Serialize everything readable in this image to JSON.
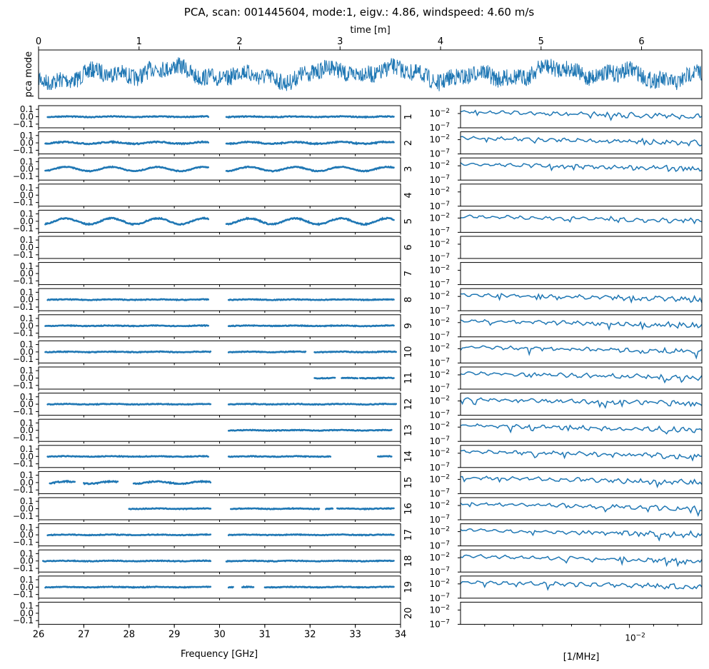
{
  "title": "PCA, scan: 001445604, mode:1, eigv.: 4.86, windspeed: 4.60 m/s",
  "colors": {
    "series": "#1f77b4",
    "axis": "#000000"
  },
  "chart_data": [
    {
      "type": "line",
      "name": "time-series",
      "ylabel": "pca mode",
      "xlabel": "time [m]",
      "xlim": [
        0,
        6.6
      ],
      "xticks": [
        "0",
        "1",
        "2",
        "3",
        "4",
        "5",
        "6"
      ],
      "grid": false
    },
    {
      "type": "scatter",
      "name": "per-feed-spectra",
      "xlabel": "Frequency [GHz]",
      "xlim": [
        26,
        34
      ],
      "xticks": [
        "26",
        "27",
        "28",
        "29",
        "30",
        "31",
        "32",
        "33",
        "34"
      ],
      "yticks": [
        "0.1",
        "0.0",
        "−0.1"
      ],
      "ylim": [
        -0.15,
        0.15
      ],
      "feeds": [
        {
          "feed": "1",
          "segments": [
            [
              26.2,
              29.75
            ],
            [
              30.15,
              33.85
            ]
          ],
          "wiggle": 0.004,
          "noise": 0.006
        },
        {
          "feed": "2",
          "segments": [
            [
              26.15,
              29.75
            ],
            [
              30.15,
              33.85
            ]
          ],
          "wiggle": 0.012,
          "noise": 0.008
        },
        {
          "feed": "3",
          "segments": [
            [
              26.15,
              29.75
            ],
            [
              30.15,
              33.85
            ]
          ],
          "wiggle": 0.028,
          "noise": 0.006
        },
        {
          "feed": "4",
          "segments": [],
          "wiggle": 0,
          "noise": 0
        },
        {
          "feed": "5",
          "segments": [
            [
              26.15,
              29.75
            ],
            [
              30.15,
              33.85
            ]
          ],
          "wiggle": 0.04,
          "noise": 0.008
        },
        {
          "feed": "6",
          "segments": [],
          "wiggle": 0,
          "noise": 0
        },
        {
          "feed": "7",
          "segments": [],
          "wiggle": 0,
          "noise": 0
        },
        {
          "feed": "8",
          "segments": [
            [
              26.2,
              29.75
            ],
            [
              30.2,
              33.85
            ]
          ],
          "wiggle": 0.003,
          "noise": 0.005
        },
        {
          "feed": "9",
          "segments": [
            [
              26.15,
              29.75
            ],
            [
              30.2,
              33.85
            ]
          ],
          "wiggle": 0.003,
          "noise": 0.005
        },
        {
          "feed": "10",
          "segments": [
            [
              26.15,
              29.8
            ],
            [
              30.2,
              31.9
            ],
            [
              32.1,
              33.9
            ]
          ],
          "wiggle": 0.003,
          "noise": 0.005
        },
        {
          "feed": "11",
          "segments": [
            [
              32.1,
              32.55
            ],
            [
              32.7,
              33.05
            ],
            [
              33.1,
              33.85
            ]
          ],
          "wiggle": 0.003,
          "noise": 0.005
        },
        {
          "feed": "12",
          "segments": [
            [
              26.2,
              29.8
            ],
            [
              30.2,
              33.9
            ]
          ],
          "wiggle": 0.003,
          "noise": 0.005
        },
        {
          "feed": "13",
          "segments": [
            [
              30.2,
              33.8
            ]
          ],
          "wiggle": 0.003,
          "noise": 0.005
        },
        {
          "feed": "14",
          "segments": [
            [
              26.2,
              29.75
            ],
            [
              30.2,
              32.45
            ],
            [
              33.5,
              33.8
            ]
          ],
          "wiggle": 0.003,
          "noise": 0.005
        },
        {
          "feed": "15",
          "segments": [
            [
              26.25,
              26.8
            ],
            [
              27.0,
              27.75
            ],
            [
              28.1,
              29.8
            ]
          ],
          "wiggle": 0.015,
          "noise": 0.008
        },
        {
          "feed": "16",
          "segments": [
            [
              28.0,
              29.8
            ],
            [
              30.25,
              32.2
            ],
            [
              32.35,
              32.5
            ],
            [
              32.6,
              33.85
            ]
          ],
          "wiggle": 0.003,
          "noise": 0.005
        },
        {
          "feed": "17",
          "segments": [
            [
              26.2,
              29.8
            ],
            [
              30.2,
              33.85
            ]
          ],
          "wiggle": 0.003,
          "noise": 0.005
        },
        {
          "feed": "18",
          "segments": [
            [
              26.1,
              29.8
            ],
            [
              30.15,
              33.85
            ]
          ],
          "wiggle": 0.003,
          "noise": 0.005
        },
        {
          "feed": "19",
          "segments": [
            [
              26.15,
              29.8
            ],
            [
              30.2,
              30.3
            ],
            [
              30.5,
              30.75
            ],
            [
              31.0,
              33.85
            ]
          ],
          "wiggle": 0.003,
          "noise": 0.005
        },
        {
          "feed": "20",
          "segments": [],
          "wiggle": 0,
          "noise": 0
        }
      ]
    },
    {
      "type": "line",
      "name": "per-feed-power-spectra",
      "xlabel": "[1/MHz]",
      "xscale": "log",
      "yscale": "log",
      "xtick_label": "10^-2",
      "yticks": [
        "10^-2",
        "10^-7"
      ],
      "active_feeds": [
        "1",
        "2",
        "3",
        "5",
        "8",
        "9",
        "10",
        "11",
        "12",
        "13",
        "14",
        "15",
        "16",
        "17",
        "18",
        "19"
      ]
    }
  ]
}
